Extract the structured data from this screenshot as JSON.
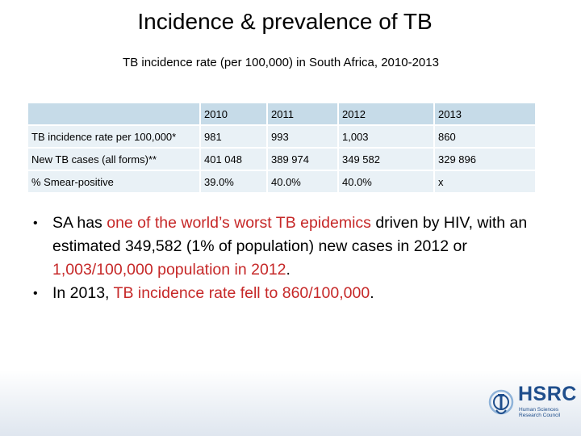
{
  "slide": {
    "title": "Incidence & prevalence of TB",
    "subtitle": "TB incidence rate (per 100,000) in South Africa, 2010-2013"
  },
  "table": {
    "header": [
      "",
      "2010",
      "2011",
      "2012",
      "2013"
    ],
    "rows": [
      [
        "TB incidence rate per 100,000*",
        "981",
        "993",
        "1,003",
        "860"
      ],
      [
        "New TB cases (all forms)**",
        "401 048",
        "389 974",
        "349 582",
        "329 896"
      ],
      [
        "% Smear-positive",
        "39.0%",
        "40.0%",
        "40.0%",
        "x"
      ]
    ]
  },
  "bullets": [
    {
      "marker": "•",
      "parts": [
        {
          "text": "SA has ",
          "red": false
        },
        {
          "text": "one of the world’s worst TB epidemics",
          "red": true
        },
        {
          "text": " driven by HIV, with an estimated 349,582 (1% of population) new cases in 2012 or ",
          "red": false
        },
        {
          "text": "1,003/100,000 population in 2012",
          "red": true
        },
        {
          "text": ".",
          "red": false
        }
      ]
    },
    {
      "marker": "•",
      "parts": [
        {
          "text": "In 2013, ",
          "red": false
        },
        {
          "text": "TB incidence rate fell to 860/100,000",
          "red": true
        },
        {
          "text": ".",
          "red": false
        }
      ]
    }
  ],
  "logo": {
    "name": "HSRC",
    "tagline": "Human Sciences Research Council"
  },
  "colors": {
    "accent_red": "#c62828",
    "table_header": "#c6dbe8",
    "table_body": "#e9f1f6",
    "logo_blue": "#1f4e8c"
  }
}
